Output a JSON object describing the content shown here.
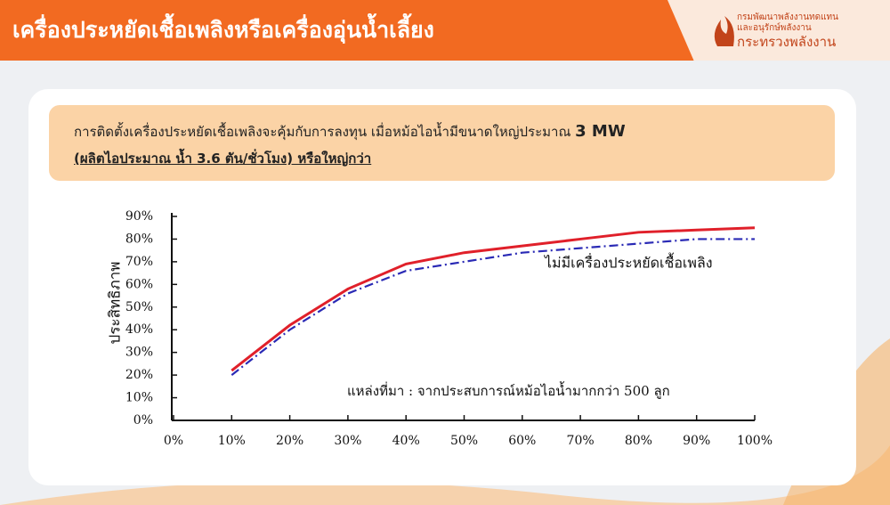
{
  "header": {
    "title": "เครื่องประหยัดเชื้อเพลิงหรือเครื่องอุ่นน้ำเลี้ยง",
    "logo": [
      "กรมพัฒนาพลังงานทดแทน",
      "และอนุรักษ์พลังงาน",
      "กระทรวงพลังงาน"
    ]
  },
  "callout": {
    "line1": [
      "การติดตั้งเครื่องประหยัดเชื้อเพลิงจะคุ้มกับการลงทุน เมื่อหม้อไอน้ำมีขนาดใหญ่ประมาณ ",
      "3 MW"
    ],
    "line2": "(ผลิตไอประมาณ น้ำ 3.6 ตัน/ชั่วโมง) หรือใหญ่กว่า"
  },
  "chart_data": {
    "type": "line",
    "y_label": "ประสิทธิภาพ",
    "annotation": "แหล่งที่มา : จากประสบการณ์หม้อไอน้ำมากกว่า 500 ลูก",
    "x": [
      10,
      20,
      30,
      40,
      50,
      60,
      70,
      80,
      90,
      100
    ],
    "series": [
      {
        "color": "#e0202a",
        "dashed": false,
        "values": [
          22,
          42,
          58,
          69,
          74,
          77,
          80,
          83,
          84,
          85
        ]
      },
      {
        "name": "ไม่มีเครื่องประหยัดเชื้อเพลิง",
        "color": "#2a2ab5",
        "dashed": true,
        "values": [
          20,
          40,
          56,
          66,
          70,
          74,
          76,
          78,
          80,
          80
        ]
      }
    ],
    "xlim": [
      0,
      100
    ],
    "xticks": [
      {
        "value": 0,
        "label": "0%"
      },
      {
        "value": 10,
        "label": "10%"
      },
      {
        "value": 20,
        "label": "20%"
      },
      {
        "value": 30,
        "label": "30%"
      },
      {
        "value": 40,
        "label": "40%"
      },
      {
        "value": 50,
        "label": "50%"
      },
      {
        "value": 60,
        "label": "60%"
      },
      {
        "value": 70,
        "label": "70%"
      },
      {
        "value": 80,
        "label": "80%"
      },
      {
        "value": 90,
        "label": "90%"
      },
      {
        "value": 100,
        "label": "100%"
      }
    ],
    "ylim": [
      0,
      90
    ],
    "yticks": [
      {
        "value": 0,
        "label": "0%"
      },
      {
        "value": 10,
        "label": "10%"
      },
      {
        "value": 20,
        "label": "20%"
      },
      {
        "value": 30,
        "label": "30%"
      },
      {
        "value": 40,
        "label": "40%"
      },
      {
        "value": 50,
        "label": "50%"
      },
      {
        "value": 60,
        "label": "60%"
      },
      {
        "value": 70,
        "label": "70%"
      },
      {
        "value": 80,
        "label": "80%"
      },
      {
        "value": 90,
        "label": "90%"
      }
    ],
    "grid": false
  }
}
